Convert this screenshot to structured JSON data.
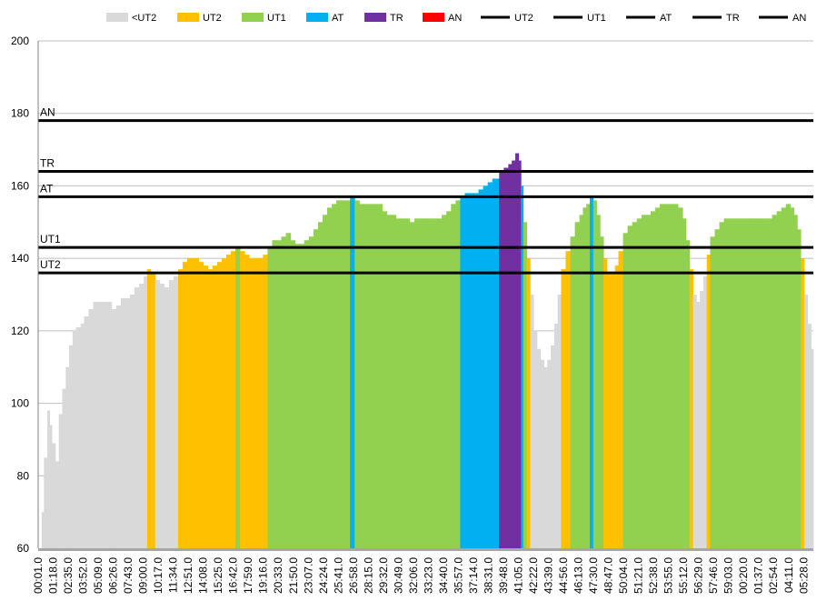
{
  "chart_data": {
    "type": "area",
    "ylim": [
      60,
      200
    ],
    "y_ticks": [
      60,
      80,
      100,
      120,
      140,
      160,
      180,
      200
    ],
    "grid": true,
    "legend_position": "top",
    "legend": [
      {
        "name": "<UT2",
        "kind": "box",
        "color": "#d9d9d9"
      },
      {
        "name": "UT2",
        "kind": "box",
        "color": "#ffc000"
      },
      {
        "name": "UT1",
        "kind": "box",
        "color": "#92d050"
      },
      {
        "name": "AT",
        "kind": "box",
        "color": "#00b0f0"
      },
      {
        "name": "TR",
        "kind": "box",
        "color": "#7030a0"
      },
      {
        "name": "AN",
        "kind": "box",
        "color": "#ff0000"
      },
      {
        "name": "UT2",
        "kind": "line",
        "color": "#000000"
      },
      {
        "name": "UT1",
        "kind": "line",
        "color": "#000000"
      },
      {
        "name": "AT",
        "kind": "line",
        "color": "#000000"
      },
      {
        "name": "TR",
        "kind": "line",
        "color": "#000000"
      },
      {
        "name": "AN",
        "kind": "line",
        "color": "#000000"
      }
    ],
    "zone_colors": {
      "<UT2": "#d9d9d9",
      "UT2": "#ffc000",
      "UT1": "#92d050",
      "AT": "#00b0f0",
      "TR": "#7030a0",
      "AN": "#ff0000"
    },
    "thresholds": [
      {
        "name": "UT2",
        "value": 136
      },
      {
        "name": "UT1",
        "value": 143
      },
      {
        "name": "AT",
        "value": 157
      },
      {
        "name": "TR",
        "value": 164
      },
      {
        "name": "AN",
        "value": 178
      }
    ],
    "x_labels": [
      "00:01.0",
      "01:18.0",
      "02:35.0",
      "03:52.0",
      "05:09.0",
      "06:26.0",
      "07:43.0",
      "09:00.0",
      "10:17.0",
      "11:34.0",
      "12:51.0",
      "14:08.0",
      "15:25.0",
      "16:42.0",
      "17:59.0",
      "19:16.0",
      "20:33.0",
      "21:50.0",
      "23:07.0",
      "24:24.0",
      "25:41.0",
      "26:58.0",
      "28:15.0",
      "29:32.0",
      "30:49.0",
      "32:06.0",
      "33:23.0",
      "34:40.0",
      "35:57.0",
      "37:14.0",
      "38:31.0",
      "39:48.0",
      "41:05.0",
      "42:22.0",
      "43:39.0",
      "44:56.0",
      "46:13.0",
      "47:30.0",
      "48:47.0",
      "50:04.0",
      "51:21.0",
      "52:38.0",
      "53:55.0",
      "55:12.0",
      "56:29.0",
      "57:46.0",
      "59:03.0",
      "00:20.0",
      "01:37.0",
      "02:54.0",
      "04:11.0",
      "05:28.0"
    ],
    "heart_rate_points": [
      [
        0,
        60
      ],
      [
        0.3,
        70
      ],
      [
        0.5,
        85
      ],
      [
        0.8,
        98
      ],
      [
        1.0,
        94
      ],
      [
        1.2,
        89
      ],
      [
        1.5,
        84
      ],
      [
        1.8,
        97
      ],
      [
        2.1,
        104
      ],
      [
        2.4,
        110
      ],
      [
        2.7,
        116
      ],
      [
        3.0,
        120
      ],
      [
        3.3,
        121
      ],
      [
        3.7,
        122
      ],
      [
        4.0,
        124
      ],
      [
        4.4,
        126
      ],
      [
        4.8,
        128
      ],
      [
        5.4,
        128
      ],
      [
        6.0,
        128
      ],
      [
        6.4,
        126
      ],
      [
        6.8,
        127
      ],
      [
        7.2,
        129
      ],
      [
        7.6,
        129
      ],
      [
        8.0,
        130
      ],
      [
        8.4,
        132
      ],
      [
        8.8,
        133
      ],
      [
        9.2,
        135
      ],
      [
        9.5,
        137
      ],
      [
        9.8,
        136
      ],
      [
        10.2,
        134
      ],
      [
        10.6,
        133
      ],
      [
        11.0,
        132
      ],
      [
        11.4,
        134
      ],
      [
        11.8,
        135
      ],
      [
        12.2,
        137
      ],
      [
        12.6,
        139
      ],
      [
        13.0,
        140
      ],
      [
        13.4,
        140
      ],
      [
        14.0,
        139
      ],
      [
        14.4,
        138
      ],
      [
        14.8,
        137
      ],
      [
        15.2,
        138
      ],
      [
        15.6,
        139
      ],
      [
        16.0,
        140
      ],
      [
        16.4,
        141
      ],
      [
        16.8,
        142
      ],
      [
        17.2,
        143
      ],
      [
        17.6,
        142
      ],
      [
        18.0,
        141
      ],
      [
        18.4,
        140
      ],
      [
        18.8,
        140
      ],
      [
        19.2,
        140
      ],
      [
        19.6,
        141
      ],
      [
        20.0,
        143
      ],
      [
        20.4,
        145
      ],
      [
        20.8,
        145
      ],
      [
        21.2,
        146
      ],
      [
        21.6,
        147
      ],
      [
        22.0,
        145
      ],
      [
        22.4,
        144
      ],
      [
        22.8,
        144
      ],
      [
        23.2,
        145
      ],
      [
        23.6,
        146
      ],
      [
        24.0,
        148
      ],
      [
        24.4,
        150
      ],
      [
        24.8,
        152
      ],
      [
        25.2,
        154
      ],
      [
        25.6,
        155
      ],
      [
        26.0,
        156
      ],
      [
        26.4,
        156
      ],
      [
        26.8,
        156
      ],
      [
        27.2,
        157
      ],
      [
        27.6,
        156
      ],
      [
        28.0,
        155
      ],
      [
        28.4,
        155
      ],
      [
        28.8,
        155
      ],
      [
        29.2,
        155
      ],
      [
        29.6,
        155
      ],
      [
        30.0,
        153
      ],
      [
        30.4,
        152
      ],
      [
        30.8,
        152
      ],
      [
        31.2,
        151
      ],
      [
        31.6,
        151
      ],
      [
        32.0,
        151
      ],
      [
        32.4,
        150
      ],
      [
        32.8,
        151
      ],
      [
        33.2,
        151
      ],
      [
        33.6,
        151
      ],
      [
        34.0,
        151
      ],
      [
        34.4,
        151
      ],
      [
        34.8,
        151
      ],
      [
        35.2,
        152
      ],
      [
        35.6,
        153
      ],
      [
        36.0,
        155
      ],
      [
        36.4,
        156
      ],
      [
        36.8,
        157
      ],
      [
        37.2,
        158
      ],
      [
        37.6,
        158
      ],
      [
        38.0,
        158
      ],
      [
        38.4,
        159
      ],
      [
        38.8,
        160
      ],
      [
        39.2,
        161
      ],
      [
        39.6,
        162
      ],
      [
        40.0,
        162
      ],
      [
        40.2,
        164
      ],
      [
        40.6,
        165
      ],
      [
        41.0,
        166
      ],
      [
        41.3,
        167
      ],
      [
        41.6,
        169
      ],
      [
        41.9,
        167
      ],
      [
        42.1,
        160
      ],
      [
        42.3,
        150
      ],
      [
        42.6,
        140
      ],
      [
        42.9,
        130
      ],
      [
        43.2,
        120
      ],
      [
        43.5,
        115
      ],
      [
        43.8,
        112
      ],
      [
        44.1,
        110
      ],
      [
        44.4,
        112
      ],
      [
        44.7,
        116
      ],
      [
        45.0,
        122
      ],
      [
        45.3,
        130
      ],
      [
        45.6,
        137
      ],
      [
        46.0,
        142
      ],
      [
        46.4,
        146
      ],
      [
        46.8,
        150
      ],
      [
        47.2,
        152
      ],
      [
        47.5,
        154
      ],
      [
        47.8,
        155
      ],
      [
        48.1,
        157
      ],
      [
        48.4,
        156
      ],
      [
        48.7,
        152
      ],
      [
        49.0,
        146
      ],
      [
        49.3,
        140
      ],
      [
        49.6,
        136
      ],
      [
        50.0,
        136
      ],
      [
        50.3,
        138
      ],
      [
        50.6,
        142
      ],
      [
        51.0,
        147
      ],
      [
        51.4,
        149
      ],
      [
        51.8,
        150
      ],
      [
        52.2,
        151
      ],
      [
        52.6,
        152
      ],
      [
        53.0,
        152
      ],
      [
        53.4,
        153
      ],
      [
        53.8,
        154
      ],
      [
        54.2,
        155
      ],
      [
        54.6,
        155
      ],
      [
        55.0,
        155
      ],
      [
        55.4,
        155
      ],
      [
        55.8,
        154
      ],
      [
        56.2,
        151
      ],
      [
        56.5,
        145
      ],
      [
        56.8,
        137
      ],
      [
        57.1,
        130
      ],
      [
        57.4,
        128
      ],
      [
        57.7,
        131
      ],
      [
        58.0,
        135
      ],
      [
        58.3,
        141
      ],
      [
        58.6,
        146
      ],
      [
        59.0,
        148
      ],
      [
        59.4,
        150
      ],
      [
        59.8,
        151
      ],
      [
        60.2,
        151
      ],
      [
        60.8,
        151
      ],
      [
        61.4,
        151
      ],
      [
        62.0,
        151
      ],
      [
        62.6,
        151
      ],
      [
        63.2,
        151
      ],
      [
        63.6,
        151
      ],
      [
        64.0,
        152
      ],
      [
        64.4,
        153
      ],
      [
        64.8,
        154
      ],
      [
        65.2,
        155
      ],
      [
        65.6,
        154
      ],
      [
        65.9,
        152
      ],
      [
        66.2,
        148
      ],
      [
        66.5,
        140
      ],
      [
        66.8,
        130
      ],
      [
        67.1,
        122
      ],
      [
        67.4,
        115
      ],
      [
        67.6,
        113
      ]
    ],
    "x_max": 67.6
  }
}
